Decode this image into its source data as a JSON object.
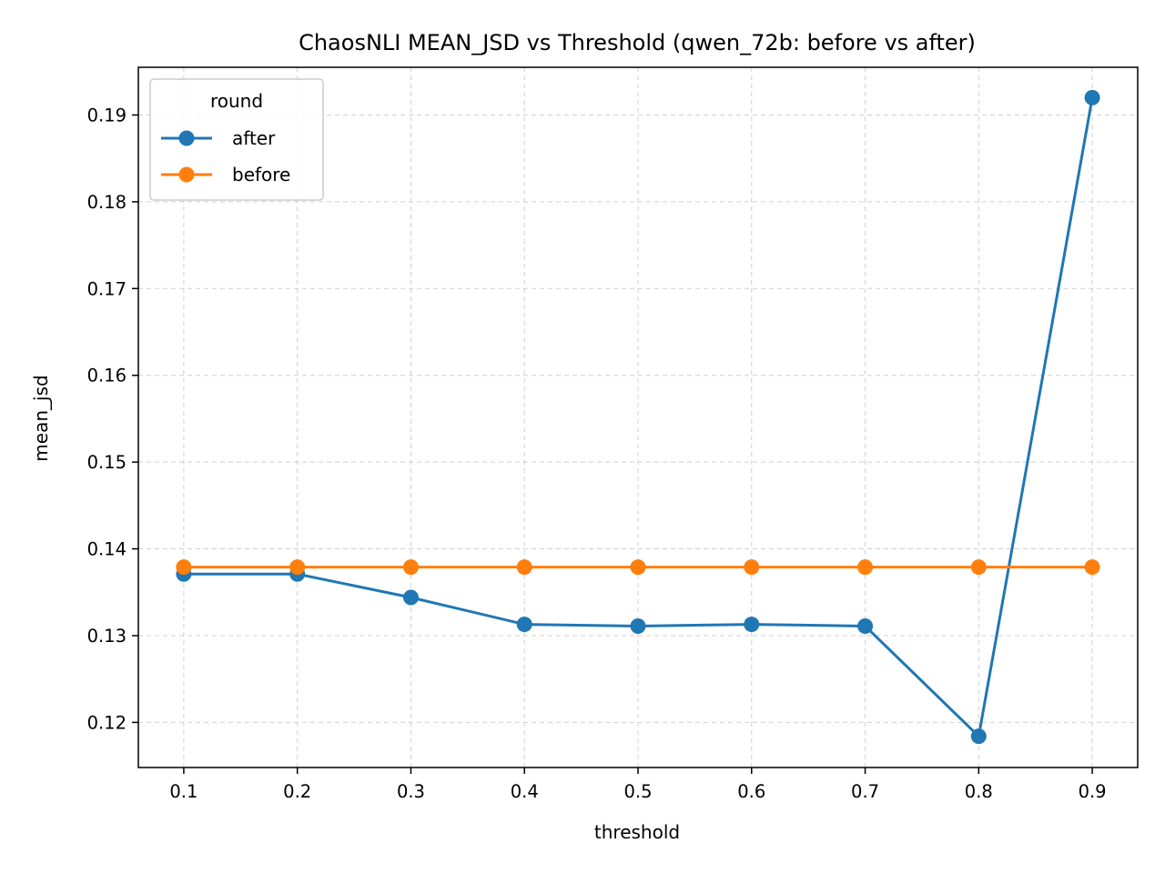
{
  "chart_data": {
    "type": "line",
    "title": "ChaosNLI MEAN_JSD vs Threshold (qwen_72b: before vs after)",
    "xlabel": "threshold",
    "ylabel": "mean_jsd",
    "x": [
      0.1,
      0.2,
      0.3,
      0.4,
      0.5,
      0.6,
      0.7,
      0.8,
      0.9
    ],
    "x_tick_labels": [
      "0.1",
      "0.2",
      "0.3",
      "0.4",
      "0.5",
      "0.6",
      "0.7",
      "0.8",
      "0.9"
    ],
    "y_ticks": [
      0.12,
      0.13,
      0.14,
      0.15,
      0.16,
      0.17,
      0.18,
      0.19
    ],
    "y_tick_labels": [
      "0.12",
      "0.13",
      "0.14",
      "0.15",
      "0.16",
      "0.17",
      "0.18",
      "0.19"
    ],
    "xlim": [
      0.06,
      0.94
    ],
    "ylim": [
      0.1148,
      0.1955
    ],
    "grid": true,
    "legend": {
      "title": "round",
      "placement": "upper-left"
    },
    "series": [
      {
        "name": "after",
        "color": "#1f77b4",
        "marker": "circle",
        "values": [
          0.1371,
          0.1371,
          0.1344,
          0.1313,
          0.1311,
          0.1313,
          0.1311,
          0.1184,
          0.192
        ]
      },
      {
        "name": "before",
        "color": "#ff7f0e",
        "marker": "circle",
        "values": [
          0.1379,
          0.1379,
          0.1379,
          0.1379,
          0.1379,
          0.1379,
          0.1379,
          0.1379,
          0.1379
        ]
      }
    ]
  }
}
